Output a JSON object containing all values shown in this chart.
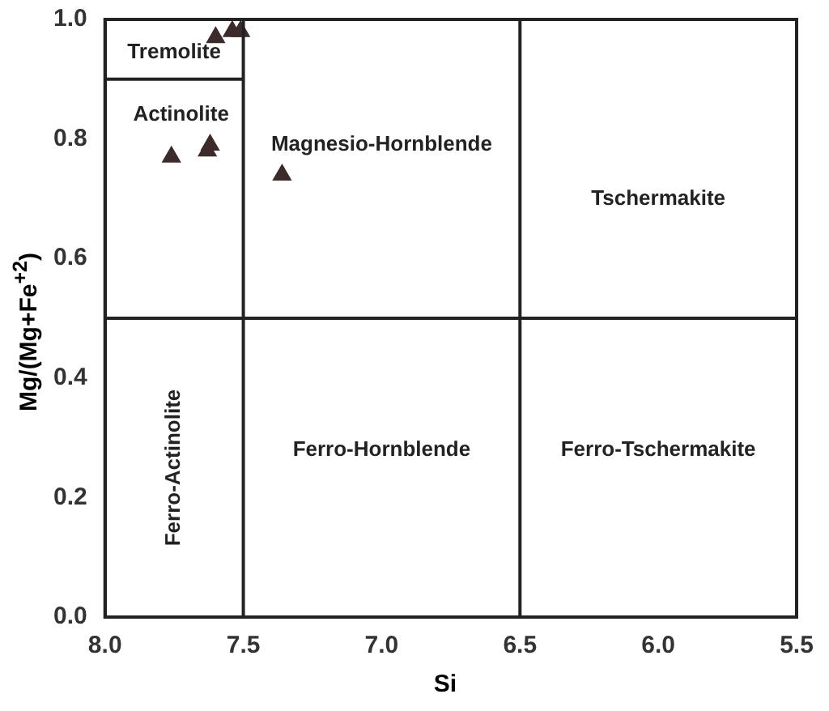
{
  "chart_data": {
    "type": "scatter",
    "xlabel": "Si",
    "ylabel": "Mg/(Mg+Fe$^{+2}$)",
    "xlim": [
      8.0,
      5.5
    ],
    "ylim": [
      0,
      1
    ],
    "xticks": [
      {
        "value": 8,
        "label": "8.0"
      },
      7.5,
      {
        "value": 7,
        "label": "7.0"
      },
      6.5,
      {
        "value": 6,
        "label": "6.0"
      },
      5.5
    ],
    "yticks": [
      {
        "value": 0,
        "label": "0.0"
      },
      0.2,
      0.4,
      0.6,
      0.8,
      {
        "value": 1,
        "label": "1.0"
      }
    ],
    "grid": false,
    "legend": false,
    "series": [
      {
        "color": "#3d2b2b",
        "marker": "triangle",
        "x": [
          7.6,
          7.54,
          7.51,
          7.76,
          7.63,
          7.62,
          7.36
        ],
        "values": [
          0.97,
          0.98,
          0.98,
          0.77,
          0.78,
          0.79,
          0.74
        ]
      },
      {
        "type": "line",
        "color": "#222222",
        "x": [
          8.0,
          7.5
        ],
        "values": [
          0.9,
          0.9
        ],
        "marker": "none"
      }
    ],
    "ref_lines": [
      {
        "axis": "x",
        "value": 7.5,
        "color": "#222222"
      },
      {
        "axis": "x",
        "value": 6.5,
        "color": "#222222"
      },
      {
        "axis": "y",
        "value": 0.5,
        "color": "#222222"
      }
    ],
    "annotations": [
      "Tremolite",
      "Actinolite",
      "Magnesio-Hornblende",
      "Tschermakite",
      "Ferro-Actinolite",
      "Ferro-Hornblende",
      "Ferro-Tschermakite"
    ]
  }
}
